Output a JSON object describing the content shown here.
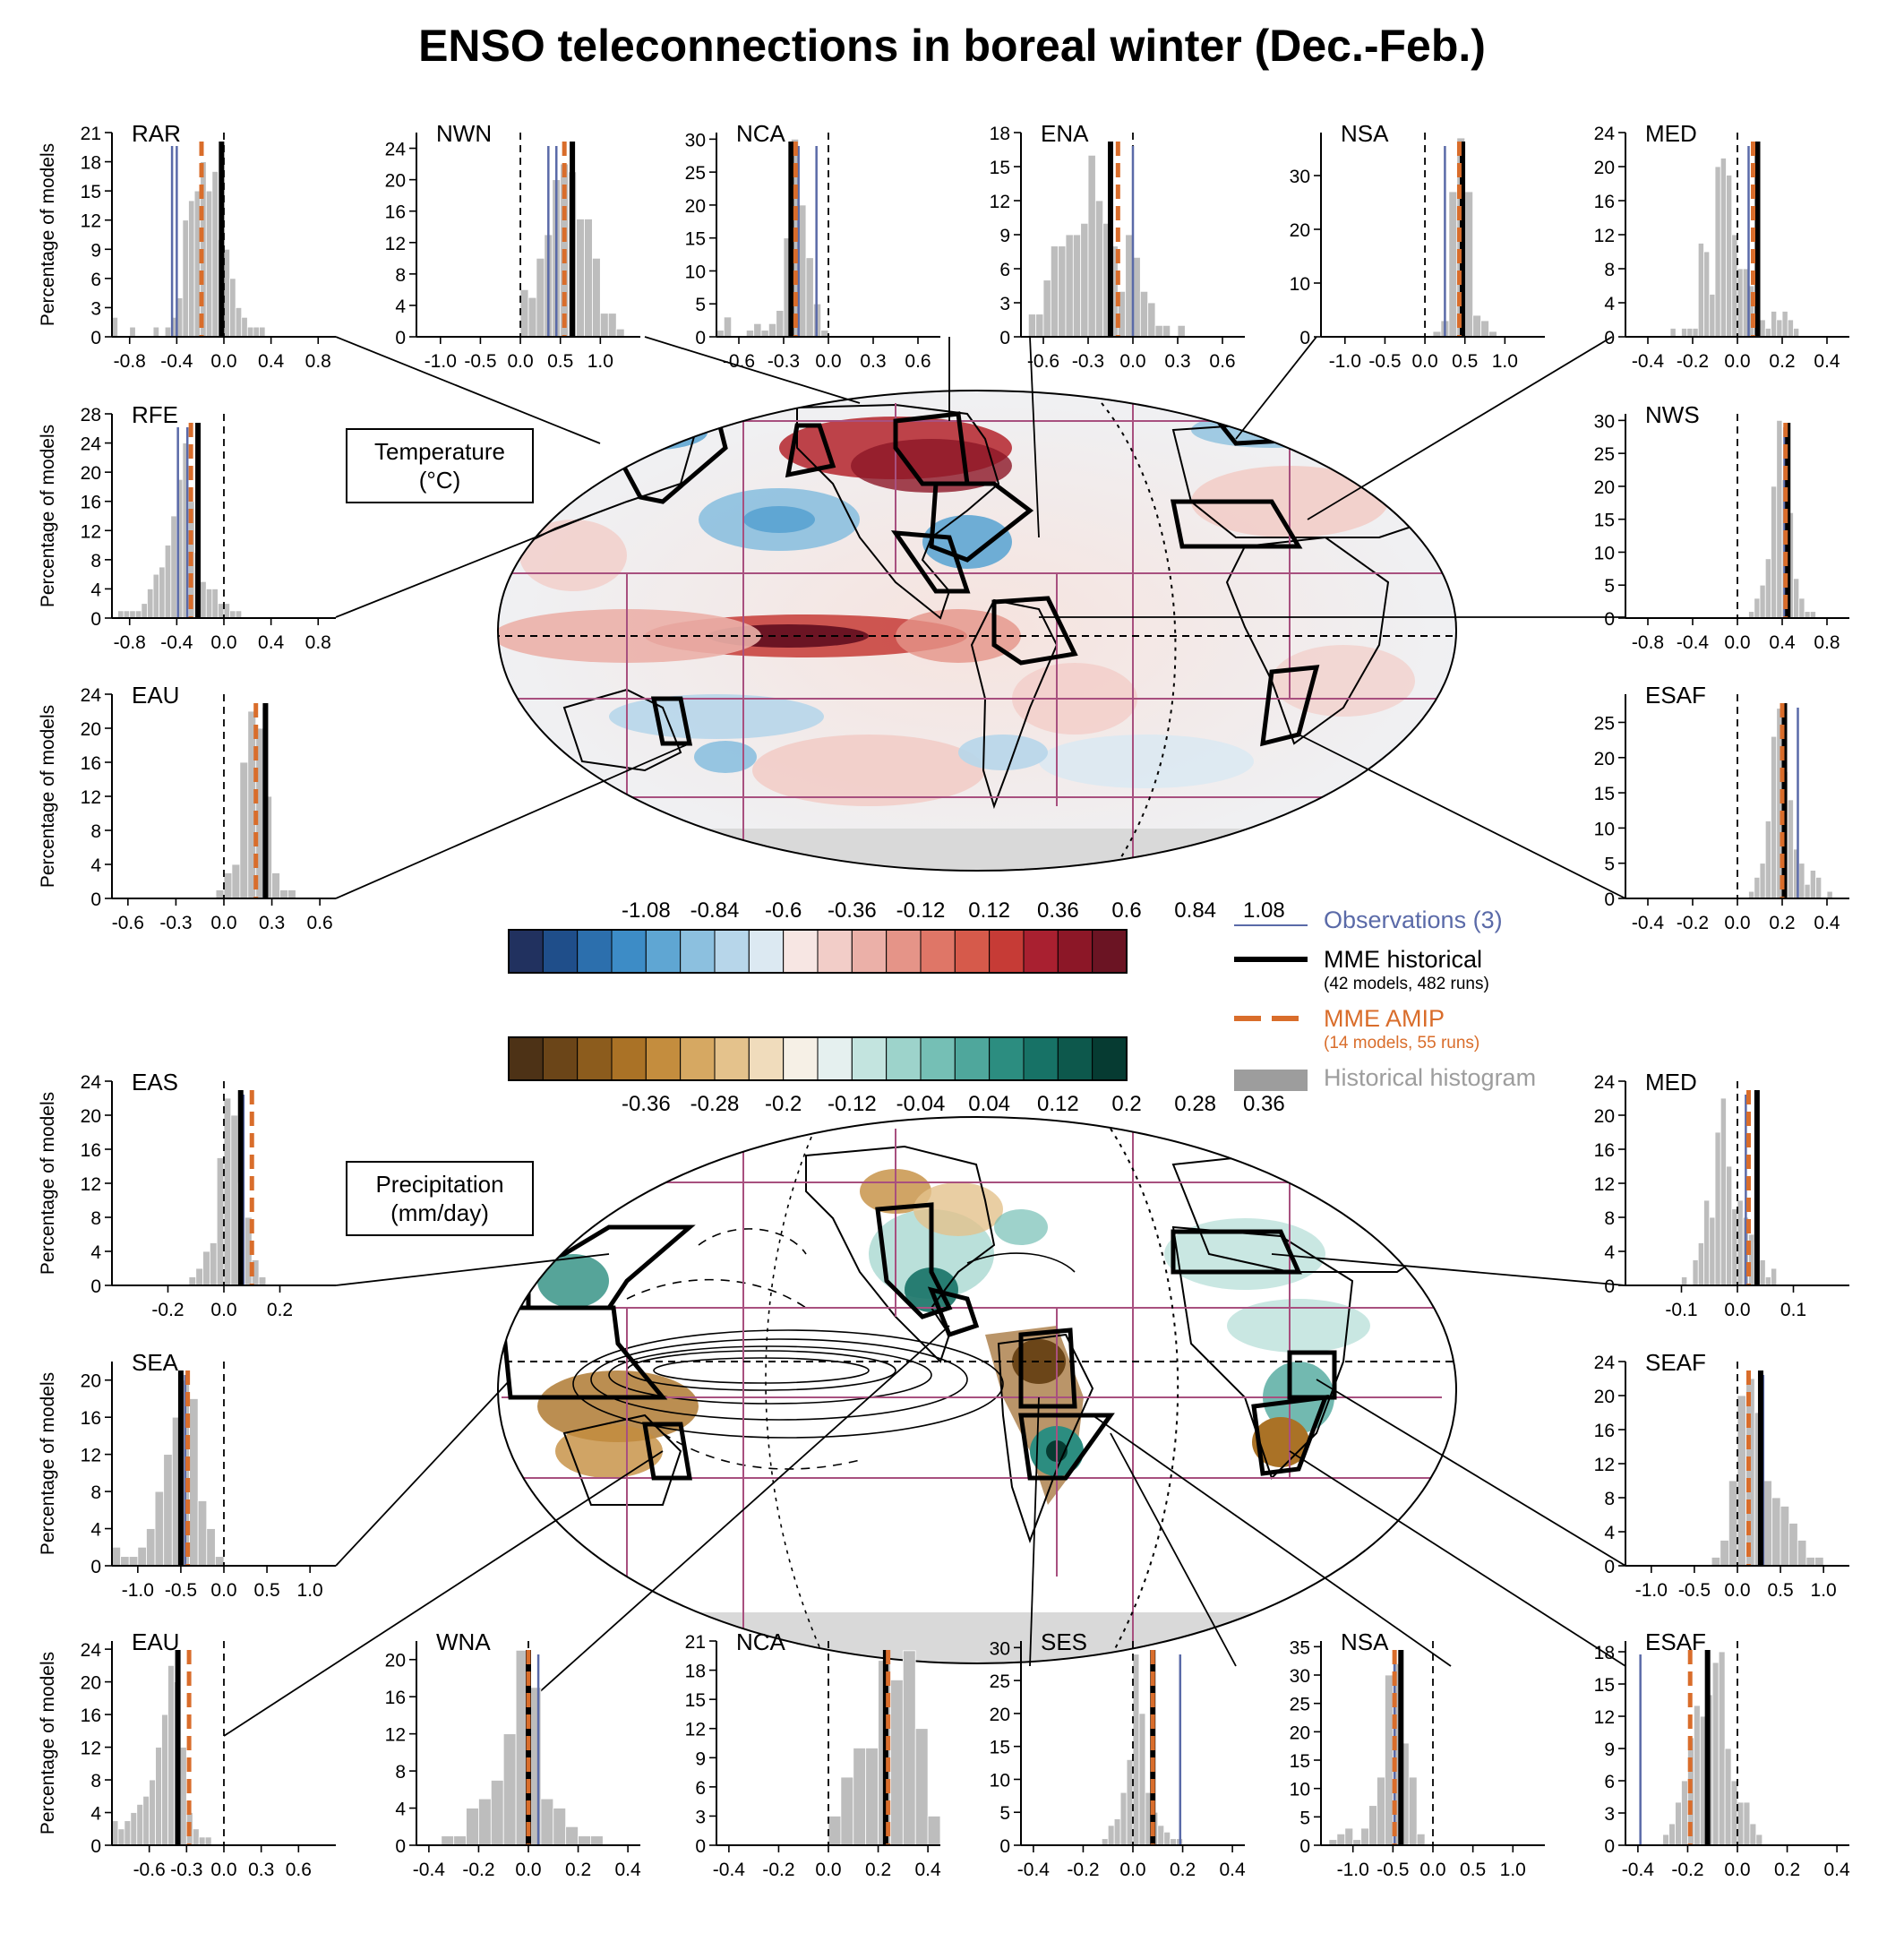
{
  "title": "ENSO teleconnections in boreal winter (Dec.-Feb.)",
  "ylabel": "Percentage of models",
  "temperature_label": [
    "Temperature",
    "(°C)"
  ],
  "precip_label": [
    "Precipitation",
    "(mm/day)"
  ],
  "temp_colorbar": {
    "labels": [
      "-1.08",
      "-0.84",
      "-0.6",
      "-0.36",
      "-0.12",
      "0.12",
      "0.36",
      "0.6",
      "0.84",
      "1.08"
    ],
    "colors": [
      "#21315f",
      "#1f4e8a",
      "#2c6fad",
      "#3d8cc6",
      "#5fa6d3",
      "#8cc0df",
      "#b7d6ea",
      "#dce9f2",
      "#f7e6e3",
      "#f2cdc8",
      "#ebb0a8",
      "#e59488",
      "#df7667",
      "#d65a4b",
      "#c63b36",
      "#a92030",
      "#8c1727",
      "#6b1423"
    ]
  },
  "precip_colorbar": {
    "labels": [
      "-0.36",
      "-0.28",
      "-0.2",
      "-0.12",
      "-0.04",
      "0.04",
      "0.12",
      "0.2",
      "0.28",
      "0.36"
    ],
    "colors": [
      "#4d3216",
      "#6b4518",
      "#8c5c1d",
      "#aa7226",
      "#c48d3e",
      "#d6a862",
      "#e4c28c",
      "#f0dcbc",
      "#f6f0e6",
      "#e5f0ef",
      "#c3e4df",
      "#9dd3cb",
      "#75bfb5",
      "#4fa79c",
      "#2c8d80",
      "#177266",
      "#0d584c",
      "#063b32"
    ]
  },
  "legend": {
    "observations": "Observations (3)",
    "mme_hist": "MME historical",
    "mme_hist_sub": "(42 models, 482 runs)",
    "mme_amip": "MME AMIP",
    "mme_amip_sub": "(14 models, 55 runs)",
    "hist_hist": "Historical histogram",
    "colors": {
      "obs": "#5a6aa8",
      "hist": "#000000",
      "amip": "#d96d2b",
      "histogram": "#9d9d9d"
    }
  },
  "chart_data": [
    {
      "type": "bar",
      "name": "RAR",
      "xlim": [
        -0.95,
        0.95
      ],
      "ylim": [
        0,
        21
      ],
      "yticks": [
        0,
        3,
        6,
        9,
        12,
        15,
        18,
        21
      ],
      "xticks": [
        -0.8,
        -0.4,
        0.0,
        0.4,
        0.8
      ],
      "xtick_labels": [
        "-0.8",
        "-0.4",
        "0.0",
        "0.4",
        "0.8"
      ],
      "bin_start": -0.95,
      "bin_width": 0.05,
      "values": [
        2,
        0,
        0,
        1,
        0,
        0,
        0,
        1,
        0,
        1,
        2,
        4,
        12,
        14,
        15,
        18,
        15,
        17,
        10,
        9,
        6,
        3,
        2,
        1,
        1,
        1,
        0,
        0,
        0,
        0,
        0,
        0,
        0,
        0,
        0,
        0,
        0,
        0
      ],
      "obs": [
        -0.44,
        -0.4
      ],
      "hist": -0.02,
      "amip": -0.19
    },
    {
      "type": "bar",
      "name": "NWN",
      "xlim": [
        -1.3,
        1.5
      ],
      "ylim": [
        0,
        26
      ],
      "yticks": [
        0,
        4,
        8,
        12,
        16,
        20,
        24
      ],
      "xticks": [
        -1.0,
        -0.5,
        0.0,
        0.5,
        1.0
      ],
      "xtick_labels": [
        "-1.0",
        "-0.5",
        "0.0",
        "0.5",
        "1.0"
      ],
      "bin_start": 0.0,
      "bin_width": 0.1,
      "values": [
        6,
        5,
        10,
        13,
        20,
        22,
        21,
        15,
        15,
        10,
        3,
        3,
        1,
        0,
        0
      ],
      "obs": [
        0.35,
        0.45
      ],
      "hist": 0.65,
      "amip": 0.55
    },
    {
      "type": "bar",
      "name": "NCA",
      "xlim": [
        -0.75,
        0.75
      ],
      "ylim": [
        0,
        31
      ],
      "yticks": [
        0,
        5,
        10,
        15,
        20,
        25,
        30
      ],
      "xticks": [
        -0.6,
        -0.3,
        0.0,
        0.3,
        0.6
      ],
      "xtick_labels": [
        "-0.6",
        "-0.3",
        "0.0",
        "0.3",
        "0.6"
      ],
      "bin_start": -0.75,
      "bin_width": 0.05,
      "values": [
        1,
        3,
        0,
        0,
        1,
        2,
        1,
        2,
        4,
        15,
        30,
        20,
        12,
        5,
        1,
        0,
        0,
        0,
        0,
        0,
        0,
        0,
        0,
        0,
        0,
        0,
        0,
        0,
        0,
        0
      ],
      "obs": [
        -0.2,
        -0.08
      ],
      "hist": -0.25,
      "amip": -0.22
    },
    {
      "type": "bar",
      "name": "ENA",
      "xlim": [
        -0.75,
        0.75
      ],
      "ylim": [
        0,
        18
      ],
      "yticks": [
        0,
        3,
        6,
        9,
        12,
        15,
        18
      ],
      "xticks": [
        -0.6,
        -0.3,
        0.0,
        0.3,
        0.6
      ],
      "xtick_labels": [
        "-0.6",
        "-0.3",
        "0.0",
        "0.3",
        "0.6"
      ],
      "bin_start": -0.75,
      "bin_width": 0.05,
      "values": [
        0,
        2,
        2,
        5,
        8,
        8,
        9,
        9,
        10,
        16,
        12,
        10,
        8,
        4,
        9,
        7,
        4,
        3,
        1,
        1,
        0,
        1,
        0,
        0,
        0,
        0,
        0,
        0,
        0,
        0
      ],
      "obs": [
        0.0
      ],
      "hist": -0.15,
      "amip": -0.1
    },
    {
      "type": "bar",
      "name": "NSA",
      "xlim": [
        -1.3,
        1.5
      ],
      "ylim": [
        0,
        38
      ],
      "yticks": [
        0,
        10,
        20,
        30
      ],
      "xticks": [
        -1.0,
        -0.5,
        0.0,
        0.5,
        1.0
      ],
      "xtick_labels": [
        "-1.0",
        "-0.5",
        "0.0",
        "0.5",
        "1.0"
      ],
      "bin_start": 0.0,
      "bin_width": 0.1,
      "values": [
        0,
        1,
        3,
        27,
        37,
        27,
        4,
        3,
        1,
        0,
        0,
        0,
        0,
        0,
        0
      ],
      "obs": [
        0.25
      ],
      "hist": 0.47,
      "amip": 0.43
    },
    {
      "type": "bar",
      "name": "MED",
      "xlim": [
        -0.5,
        0.5
      ],
      "ylim": [
        0,
        24
      ],
      "yticks": [
        0,
        4,
        8,
        12,
        16,
        20,
        24
      ],
      "xticks": [
        -0.4,
        -0.2,
        0.0,
        0.2,
        0.4
      ],
      "xtick_labels": [
        "-0.4",
        "-0.2",
        "0.0",
        "0.2",
        "0.4"
      ],
      "bin_start": -0.3,
      "bin_width": 0.025,
      "values": [
        1,
        0,
        1,
        1,
        1,
        11,
        10,
        5,
        20,
        21,
        19,
        12,
        8,
        8,
        6,
        5,
        2,
        1,
        3,
        2,
        3,
        2,
        1,
        0
      ],
      "obs": [
        0.05
      ],
      "hist": 0.09,
      "amip": 0.07
    },
    {
      "type": "bar",
      "name": "RFE",
      "xlim": [
        -0.95,
        0.95
      ],
      "ylim": [
        0,
        28
      ],
      "yticks": [
        0,
        4,
        8,
        12,
        16,
        20,
        24,
        28
      ],
      "xticks": [
        -0.8,
        -0.4,
        0.0,
        0.4,
        0.8
      ],
      "xtick_labels": [
        "-0.8",
        "-0.4",
        "0.0",
        "0.4",
        "0.8"
      ],
      "bin_start": -0.95,
      "bin_width": 0.05,
      "values": [
        0,
        1,
        1,
        1,
        1,
        2,
        4,
        6,
        7,
        10,
        14,
        19,
        24,
        16,
        9,
        5,
        4,
        4,
        2,
        2,
        1,
        1,
        0,
        0,
        0,
        0,
        0,
        0,
        0,
        0,
        0,
        0,
        0,
        0,
        0,
        0,
        0,
        0
      ],
      "obs": [
        -0.39,
        -0.31
      ],
      "hist": -0.22,
      "amip": -0.28
    },
    {
      "type": "bar",
      "name": "NWS",
      "xlim": [
        -1.0,
        1.0
      ],
      "ylim": [
        0,
        31
      ],
      "yticks": [
        0,
        5,
        10,
        15,
        20,
        25,
        30
      ],
      "xticks": [
        -0.8,
        -0.4,
        0.0,
        0.4,
        0.8
      ],
      "xtick_labels": [
        "-0.8",
        "-0.4",
        "0.0",
        "0.4",
        "0.8"
      ],
      "bin_start": 0.0,
      "bin_width": 0.05,
      "values": [
        0,
        0,
        1,
        3,
        5,
        9,
        20,
        30,
        21,
        16,
        6,
        3,
        1,
        1,
        0,
        0,
        0,
        0,
        0,
        0
      ],
      "obs": [
        0.42
      ],
      "hist": 0.45,
      "amip": 0.43
    },
    {
      "type": "bar",
      "name": "EAU",
      "xlim": [
        -0.7,
        0.7
      ],
      "ylim": [
        0,
        24
      ],
      "yticks": [
        0,
        4,
        8,
        12,
        16,
        20,
        24
      ],
      "xticks": [
        -0.6,
        -0.3,
        0.0,
        0.3,
        0.6
      ],
      "xtick_labels": [
        "-0.6",
        "-0.3",
        "0.0",
        "0.3",
        "0.6"
      ],
      "bin_start": -0.05,
      "bin_width": 0.05,
      "values": [
        1,
        3,
        4,
        16,
        22,
        20,
        12,
        3,
        1,
        1,
        0,
        0,
        0,
        0,
        0
      ],
      "obs": [
        0.25
      ],
      "hist": 0.26,
      "amip": 0.2
    },
    {
      "type": "bar",
      "name": "ESAF",
      "xlim": [
        -0.5,
        0.5
      ],
      "ylim": [
        0,
        29
      ],
      "yticks": [
        0,
        5,
        10,
        15,
        20,
        25
      ],
      "xticks": [
        -0.4,
        -0.2,
        0.0,
        0.2,
        0.4
      ],
      "xtick_labels": [
        "-0.4",
        "-0.2",
        "0.0",
        "0.2",
        "0.4"
      ],
      "bin_start": 0.0,
      "bin_width": 0.025,
      "values": [
        0,
        0,
        1,
        3,
        5,
        11,
        23,
        27,
        18,
        14,
        7,
        5,
        2,
        4,
        3,
        0,
        1,
        0,
        0,
        0
      ],
      "obs": [
        0.27
      ],
      "hist": 0.21,
      "amip": 0.2
    },
    {
      "type": "bar",
      "name": "EAS",
      "xlim": [
        -0.4,
        0.4
      ],
      "ylim": [
        0,
        24
      ],
      "yticks": [
        0,
        4,
        8,
        12,
        16,
        20,
        24
      ],
      "xticks": [
        -0.2,
        0.0,
        0.2
      ],
      "xtick_labels": [
        "-0.2",
        "0.0",
        "0.2"
      ],
      "bin_start": -0.15,
      "bin_width": 0.025,
      "values": [
        0,
        1,
        2,
        4,
        5,
        15,
        22,
        20,
        12,
        8,
        3,
        1,
        0,
        0,
        0,
        0
      ],
      "obs": [
        0.07
      ],
      "hist": 0.06,
      "amip": 0.1
    },
    {
      "type": "bar",
      "name": "MED",
      "xlim": [
        -0.2,
        0.2
      ],
      "ylim": [
        0,
        24
      ],
      "yticks": [
        0,
        4,
        8,
        12,
        16,
        20,
        24
      ],
      "xticks": [
        -0.1,
        0.0,
        0.1
      ],
      "xtick_labels": [
        "-0.1",
        "0.0",
        "0.1"
      ],
      "bin_start": -0.1,
      "bin_width": 0.01,
      "values": [
        1,
        0,
        3,
        5,
        10,
        8,
        18,
        22,
        14,
        9,
        10,
        8,
        6,
        5,
        3,
        1,
        2,
        0,
        0,
        0
      ],
      "obs": [
        0.015
      ],
      "hist": 0.035,
      "amip": 0.02
    },
    {
      "type": "bar",
      "name": "SEA",
      "xlim": [
        -1.3,
        1.3
      ],
      "ylim": [
        0,
        22
      ],
      "yticks": [
        0,
        4,
        8,
        12,
        16,
        20
      ],
      "xticks": [
        -1.0,
        -0.5,
        0.0,
        0.5,
        1.0
      ],
      "xtick_labels": [
        "-1.0",
        "-0.5",
        "0.0",
        "0.5",
        "1.0"
      ],
      "bin_start": -1.3,
      "bin_width": 0.1,
      "values": [
        2,
        1,
        1,
        2,
        4,
        8,
        12,
        16,
        20,
        18,
        7,
        4,
        1,
        0,
        0,
        0,
        0,
        0,
        0,
        0,
        0,
        0,
        0,
        0,
        0,
        0
      ],
      "obs": [
        -0.45
      ],
      "hist": -0.5,
      "amip": -0.42
    },
    {
      "type": "bar",
      "name": "SEAF",
      "xlim": [
        -1.3,
        1.3
      ],
      "ylim": [
        0,
        24
      ],
      "yticks": [
        0,
        4,
        8,
        12,
        16,
        20,
        24
      ],
      "xticks": [
        -1.0,
        -0.5,
        0.0,
        0.5,
        1.0
      ],
      "xtick_labels": [
        "-1.0",
        "-0.5",
        "0.0",
        "0.5",
        "1.0"
      ],
      "bin_start": -0.3,
      "bin_width": 0.1,
      "values": [
        1,
        3,
        10,
        20,
        22,
        18,
        10,
        8,
        7,
        5,
        3,
        1,
        1,
        0,
        0,
        0
      ],
      "obs": [
        0.3
      ],
      "hist": 0.27,
      "amip": 0.13
    },
    {
      "type": "bar",
      "name": "EAU",
      "xlim": [
        -0.9,
        0.9
      ],
      "ylim": [
        0,
        25
      ],
      "yticks": [
        0,
        4,
        8,
        12,
        16,
        20,
        24
      ],
      "xticks": [
        -0.6,
        -0.3,
        0.0,
        0.3,
        0.6
      ],
      "xtick_labels": [
        "-0.6",
        "-0.3",
        "0.0",
        "0.3",
        "0.6"
      ],
      "bin_start": -0.9,
      "bin_width": 0.05,
      "values": [
        3,
        2,
        3,
        4,
        5,
        6,
        8,
        12,
        16,
        22,
        20,
        12,
        4,
        2,
        1,
        1,
        0,
        0,
        0,
        0,
        0,
        0,
        0,
        0,
        0,
        0,
        0,
        0,
        0,
        0,
        0,
        0,
        0,
        0,
        0,
        0
      ],
      "obs": [
        -0.38
      ],
      "hist": -0.37,
      "amip": -0.28
    },
    {
      "type": "bar",
      "name": "WNA",
      "xlim": [
        -0.45,
        0.45
      ],
      "ylim": [
        0,
        22
      ],
      "yticks": [
        0,
        4,
        8,
        12,
        16,
        20
      ],
      "xticks": [
        -0.4,
        -0.2,
        0.0,
        0.2,
        0.4
      ],
      "xtick_labels": [
        "-0.4",
        "-0.2",
        "0.0",
        "0.2",
        "0.4"
      ],
      "bin_start": -0.35,
      "bin_width": 0.05,
      "values": [
        1,
        1,
        4,
        5,
        7,
        12,
        21,
        17,
        5,
        4,
        2,
        1,
        1,
        0,
        0,
        0
      ],
      "obs": [
        0.04
      ],
      "hist": 0.0,
      "amip": 0.0
    },
    {
      "type": "bar",
      "name": "NCA",
      "xlim": [
        -0.45,
        0.45
      ],
      "ylim": [
        0,
        21
      ],
      "yticks": [
        0,
        3,
        6,
        9,
        12,
        15,
        18,
        21
      ],
      "xticks": [
        -0.4,
        -0.2,
        0.0,
        0.2,
        0.4
      ],
      "xtick_labels": [
        "-0.4",
        "-0.2",
        "0.0",
        "0.2",
        "0.4"
      ],
      "bin_start": 0.0,
      "bin_width": 0.05,
      "values": [
        3,
        7,
        10,
        10,
        19,
        17,
        20,
        12,
        3,
        0
      ],
      "obs": [
        0.23
      ],
      "hist": 0.23,
      "amip": 0.24
    },
    {
      "type": "bar",
      "name": "SES",
      "xlim": [
        -0.45,
        0.45
      ],
      "ylim": [
        0,
        31
      ],
      "yticks": [
        0,
        5,
        10,
        15,
        20,
        25,
        30
      ],
      "xticks": [
        -0.4,
        -0.2,
        0.0,
        0.2,
        0.4
      ],
      "xtick_labels": [
        "-0.4",
        "-0.2",
        "0.0",
        "0.2",
        "0.4"
      ],
      "bin_start": -0.15,
      "bin_width": 0.025,
      "values": [
        0,
        1,
        3,
        4,
        8,
        13,
        29,
        20,
        8,
        5,
        3,
        2,
        1,
        1,
        0,
        0
      ],
      "obs": [
        0.19
      ],
      "hist": 0.08,
      "amip": 0.08
    },
    {
      "type": "bar",
      "name": "NSA",
      "xlim": [
        -1.4,
        1.4
      ],
      "ylim": [
        0,
        36
      ],
      "yticks": [
        0,
        5,
        10,
        15,
        20,
        25,
        30,
        35
      ],
      "xticks": [
        -1.0,
        -0.5,
        0.0,
        0.5,
        1.0
      ],
      "xtick_labels": [
        "-1.0",
        "-0.5",
        "0.0",
        "0.5",
        "1.0"
      ],
      "bin_start": -1.3,
      "bin_width": 0.1,
      "values": [
        1,
        2,
        3,
        1,
        3,
        7,
        12,
        30,
        32,
        18,
        12,
        2,
        0,
        0,
        0,
        0
      ],
      "obs": [
        -0.48
      ],
      "hist": -0.4,
      "amip": -0.48
    },
    {
      "type": "bar",
      "name": "ESAF",
      "xlim": [
        -0.45,
        0.45
      ],
      "ylim": [
        0,
        19
      ],
      "yticks": [
        0,
        3,
        6,
        9,
        12,
        15,
        18
      ],
      "xticks": [
        -0.4,
        -0.2,
        0.0,
        0.2,
        0.4
      ],
      "xtick_labels": [
        "-0.4",
        "-0.2",
        "0.0",
        "0.2",
        "0.4"
      ],
      "bin_start": -0.35,
      "bin_width": 0.025,
      "values": [
        0,
        0,
        1,
        2,
        4,
        6,
        10,
        13,
        12,
        14,
        17,
        18,
        9,
        6,
        4,
        4,
        2,
        1,
        0,
        0
      ],
      "obs": [
        -0.39
      ],
      "hist": -0.12,
      "amip": -0.19
    }
  ]
}
